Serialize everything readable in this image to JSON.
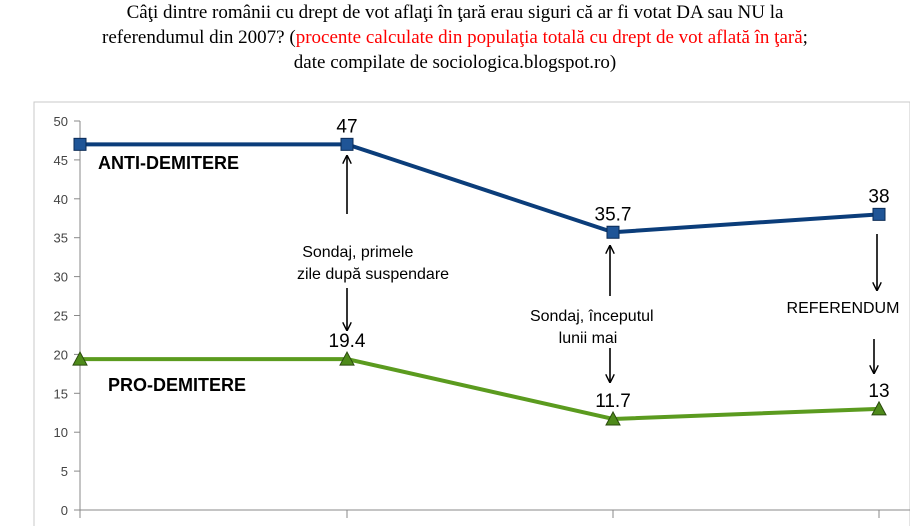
{
  "title": {
    "line1": "Câţi dintre românii cu drept de vot aflaţi în ţară erau siguri că ar fi votat DA sau NU la",
    "line2_black": "referendumul din 2007? (",
    "line2_red": "procente calculate din populaţia totală cu drept de vot aflată în ţară",
    "line2_end": ";",
    "line3": "date compilate de sociologica.blogspot.ro)"
  },
  "chart_data": {
    "type": "line",
    "x": [
      1,
      2,
      3,
      4
    ],
    "ylim": [
      0,
      50
    ],
    "yticks": [
      0,
      5,
      10,
      15,
      20,
      25,
      30,
      35,
      40,
      45,
      50
    ],
    "grid": false,
    "series": [
      {
        "name": "ANTI-DEMITERE",
        "values": [
          47,
          47,
          35.7,
          38
        ],
        "labels": [
          "",
          "47",
          "35.7",
          "38"
        ],
        "color": "#0b3d7a",
        "marker": "square",
        "marker_color": "#1f5597"
      },
      {
        "name": "PRO-DEMITERE",
        "values": [
          19.4,
          19.4,
          11.7,
          13
        ],
        "labels": [
          "",
          "19.4",
          "11.7",
          "13"
        ],
        "color": "#5b9b1f",
        "marker": "triangle",
        "marker_color": "#4e8a1a"
      }
    ],
    "annotations": [
      {
        "lines": [
          "Sondaj, primele",
          "zile după suspendare"
        ]
      },
      {
        "lines": [
          "Sondaj, începutul",
          "lunii mai"
        ]
      },
      {
        "lines": [
          "REFERENDUM"
        ]
      }
    ]
  }
}
